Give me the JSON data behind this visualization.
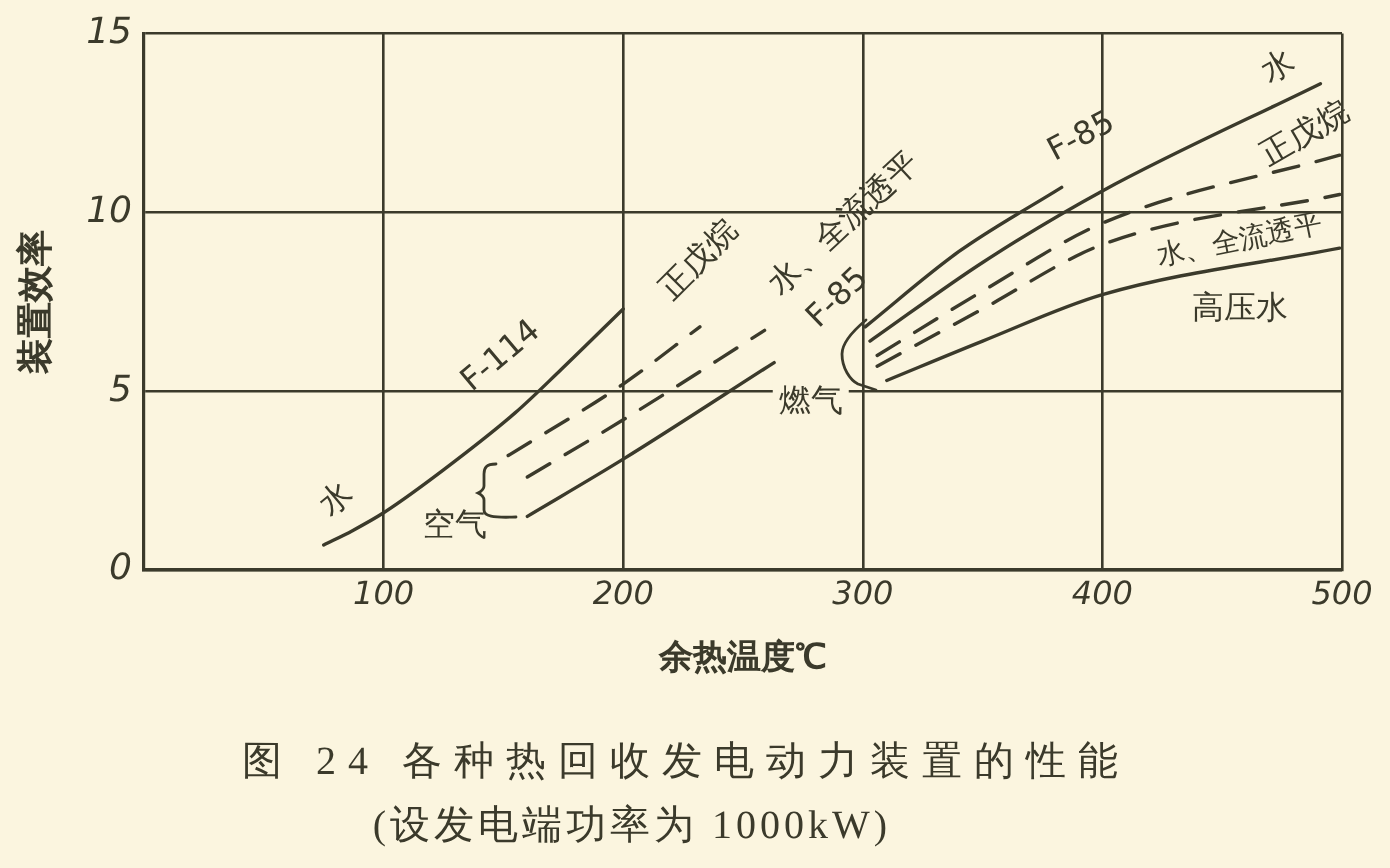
{
  "chart_data": {
    "type": "line",
    "title": "图 24 各种热回收发电动力装置的性能",
    "subtitle": "(设发电端功率为 1000kW)",
    "xlabel": "余热温度℃",
    "ylabel": "装置效率",
    "xlim": [
      0,
      500
    ],
    "xticks": [
      100,
      200,
      300,
      400,
      500
    ],
    "ylim": [
      0,
      15
    ],
    "yticks": [
      0,
      5,
      10,
      15
    ],
    "grid": true,
    "legend": false,
    "marker": "none",
    "line_style": "solid",
    "series": [
      {
        "color": "#3b3a2b",
        "x": [
          75,
          87,
          100,
          125,
          155,
          174,
          200
        ],
        "values": [
          0.7,
          1.1,
          1.6,
          2.8,
          4.4,
          5.6,
          7.3
        ]
      },
      {
        "color": "#3b3a2b",
        "line_style": "dashed",
        "x": [
          152,
          200,
          232
        ],
        "values": [
          3.2,
          5.2,
          6.8
        ]
      },
      {
        "color": "#3b3a2b",
        "line_style": "dashed",
        "x": [
          160,
          200,
          259
        ],
        "values": [
          2.6,
          4.2,
          6.7
        ]
      },
      {
        "color": "#3b3a2b",
        "x": [
          160,
          200,
          263
        ],
        "values": [
          1.5,
          3.1,
          5.8
        ]
      },
      {
        "color": "#3b3a2b",
        "x": [
          301,
          340,
          383
        ],
        "values": [
          6.8,
          8.9,
          10.7
        ]
      },
      {
        "color": "#3b3a2b",
        "x": [
          303,
          350,
          400,
          491
        ],
        "values": [
          6.4,
          8.6,
          10.6,
          13.6
        ]
      },
      {
        "color": "#3b3a2b",
        "line_style": "dashed",
        "x": [
          306,
          350,
          400,
          499
        ],
        "values": [
          6.0,
          7.8,
          9.7,
          11.6
        ]
      },
      {
        "color": "#3b3a2b",
        "line_style": "dashed",
        "x": [
          306,
          350,
          400,
          499
        ],
        "values": [
          5.7,
          7.3,
          9.1,
          10.5
        ]
      },
      {
        "color": "#3b3a2b",
        "x": [
          310,
          350,
          400,
          499
        ],
        "values": [
          5.3,
          6.4,
          7.7,
          9.0
        ]
      }
    ],
    "annotations": [
      {
        "text": "水",
        "x": 87,
        "y": 1.1
      },
      {
        "text": "F-114",
        "x": 155,
        "y": 4.4
      },
      {
        "text": "空气",
        "x": 160,
        "y": 1.5
      },
      {
        "text": "正戊烷",
        "x": 232,
        "y": 6.8
      },
      {
        "text": "水、全流透平",
        "x": 259,
        "y": 6.7
      },
      {
        "text": "F-85",
        "x": 263,
        "y": 5.8
      },
      {
        "text": "燃气",
        "x": 310,
        "y": 5.3
      },
      {
        "text": "F-85",
        "x": 383,
        "y": 10.7
      },
      {
        "text": "水",
        "x": 491,
        "y": 13.6
      },
      {
        "text": "正戊烷",
        "x": 499,
        "y": 11.6
      },
      {
        "text": "水、全流透平",
        "x": 499,
        "y": 10.5
      },
      {
        "text": "高压水",
        "x": 499,
        "y": 9.0
      }
    ]
  }
}
